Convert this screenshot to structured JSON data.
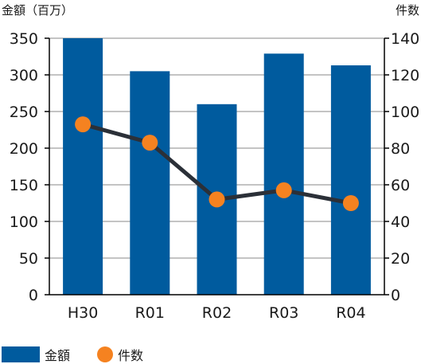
{
  "chart_data": {
    "type": "bar",
    "categories": [
      "H30",
      "R01",
      "R02",
      "R03",
      "R04"
    ],
    "series": [
      {
        "name": "金額",
        "type": "bar",
        "axis": "left",
        "values": [
          350,
          305,
          260,
          329,
          313
        ]
      },
      {
        "name": "件数",
        "type": "line",
        "axis": "right",
        "values": [
          93,
          83,
          52,
          57,
          50
        ]
      }
    ],
    "y_left": {
      "label": "金額（百万）",
      "min": 0,
      "max": 350,
      "ticks": [
        0,
        50,
        100,
        150,
        200,
        250,
        300,
        350
      ]
    },
    "y_right": {
      "label": "件数",
      "min": 0,
      "max": 140,
      "ticks": [
        0,
        20,
        40,
        60,
        80,
        100,
        120,
        140
      ]
    },
    "legend": "bottom-left",
    "grid": "horizontal",
    "colors": {
      "bar": "#005b9e",
      "line": "#2b3038",
      "marker": "#f58220",
      "grid": "#8a8a8a",
      "axis": "#000000"
    }
  }
}
